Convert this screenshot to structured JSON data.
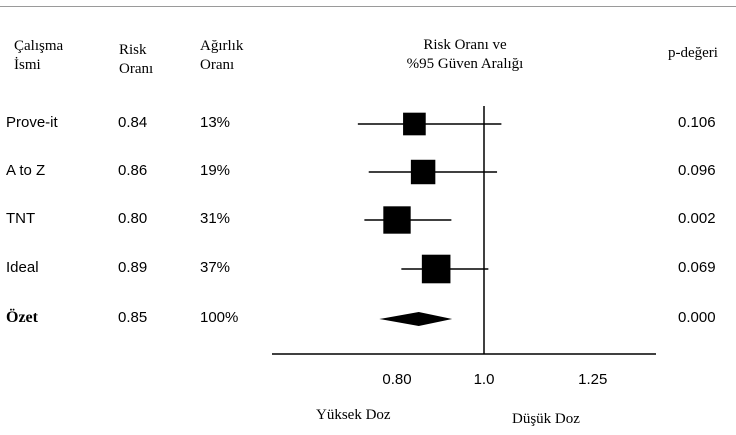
{
  "headers": {
    "study_name": [
      "Çalışma",
      "İsmi"
    ],
    "risk_ratio": [
      "Risk",
      "Oranı"
    ],
    "weight": [
      "Ağırlık",
      "Oranı"
    ],
    "ci": [
      "Risk Oranı ve",
      "%95 Güven Aralığı"
    ],
    "p_value": "p-değeri"
  },
  "chart_data": {
    "type": "forest",
    "axis": {
      "ticks": [
        0.8,
        1.0,
        1.25
      ],
      "tick_labels": [
        "0.80",
        "1.0",
        "1.25"
      ],
      "reference_line": 1.0,
      "xlim": [
        0.6,
        1.4
      ],
      "left_label": "Yüksek Doz",
      "right_label": "Düşük Doz"
    },
    "rows": [
      {
        "study": "Prove-it",
        "rr": 0.84,
        "rr_text": "0.84",
        "weight": "13%",
        "weight_pct": 13,
        "ci": [
          0.71,
          1.04
        ],
        "p": "0.106",
        "bold": false
      },
      {
        "study": "A to Z",
        "rr": 0.86,
        "rr_text": "0.86",
        "weight": "19%",
        "weight_pct": 19,
        "ci": [
          0.735,
          1.03
        ],
        "p": "0.096",
        "bold": false
      },
      {
        "study": "TNT",
        "rr": 0.8,
        "rr_text": "0.80",
        "weight": "31%",
        "weight_pct": 31,
        "ci": [
          0.725,
          0.925
        ],
        "p": "0.002",
        "bold": false
      },
      {
        "study": "Ideal",
        "rr": 0.89,
        "rr_text": "0.89",
        "weight": "37%",
        "weight_pct": 37,
        "ci": [
          0.81,
          1.01
        ],
        "p": "0.069",
        "bold": false
      },
      {
        "study": "Özet",
        "rr": 0.85,
        "rr_text": "0.85",
        "weight": "100%",
        "weight_pct": 100,
        "ci": [
          0.81,
          0.89
        ],
        "p": "0.000",
        "bold": true,
        "summary": true
      }
    ]
  },
  "colors": {
    "ink": "#000000",
    "rule": "#9a9a9a",
    "background": "#ffffff"
  }
}
